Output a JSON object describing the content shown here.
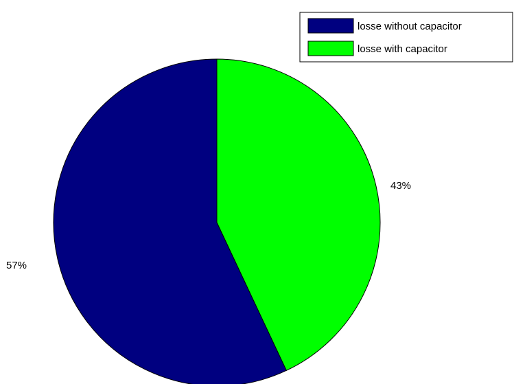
{
  "chart_data": {
    "type": "pie",
    "title": "",
    "series": [
      {
        "name": "losse without capacitor",
        "value": 57,
        "color": "#000080",
        "label": "57%"
      },
      {
        "name": "losse with capacitor",
        "value": 43,
        "color": "#00ff00",
        "label": "43%"
      }
    ],
    "legend_position": "top-right",
    "start_angle": "12 o'clock",
    "direction": "clockwise starting with the green slice"
  }
}
